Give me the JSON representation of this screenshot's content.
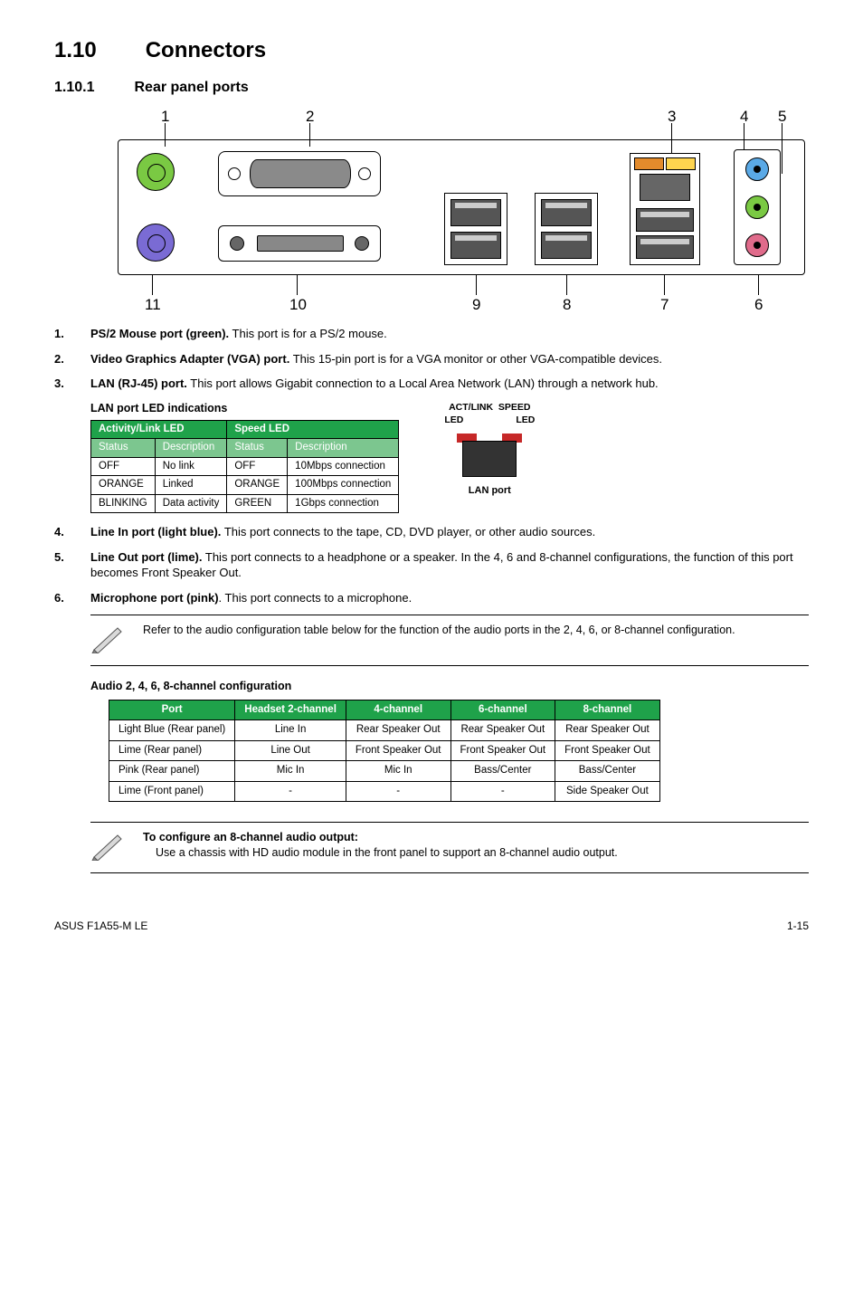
{
  "section": {
    "number": "1.10",
    "title": "Connectors"
  },
  "subsection": {
    "number": "1.10.1",
    "title": "Rear panel ports"
  },
  "diagram": {
    "top_labels": [
      "1",
      "2",
      "3",
      "4",
      "5"
    ],
    "bottom_labels": [
      "11",
      "10",
      "9",
      "8",
      "7",
      "6"
    ]
  },
  "items": [
    {
      "num": "1.",
      "name": "PS/2 Mouse port (green).",
      "desc": "This port is for a PS/2 mouse."
    },
    {
      "num": "2.",
      "name": "Video Graphics Adapter (VGA) port.",
      "desc": "This 15-pin port is for a VGA monitor or other VGA-compatible devices."
    },
    {
      "num": "3.",
      "name": "LAN (RJ-45) port.",
      "desc": "This port allows Gigabit connection to a Local Area Network (LAN) through a network hub."
    }
  ],
  "lan_table": {
    "caption": "LAN port LED indications",
    "header1_bg": "#1fa24a",
    "header2_bg": "#7cc68f",
    "group_headers": [
      "Activity/Link LED",
      "Speed LED"
    ],
    "sub_headers": [
      "Status",
      "Description",
      "Status",
      "Description"
    ],
    "rows": [
      [
        "OFF",
        "No link",
        "OFF",
        "10Mbps connection"
      ],
      [
        "ORANGE",
        "Linked",
        "ORANGE",
        "100Mbps connection"
      ],
      [
        "BLINKING",
        "Data activity",
        "GREEN",
        "1Gbps connection"
      ]
    ]
  },
  "lan_icon": {
    "top_label_line1": "ACT/LINK",
    "top_label_line2": "SPEED",
    "led_left": "LED",
    "led_right": "LED",
    "bottom_label": "LAN port"
  },
  "items2": [
    {
      "num": "4.",
      "name": "Line In port (light blue).",
      "desc": "This port connects to the tape, CD, DVD player, or other audio sources."
    },
    {
      "num": "5.",
      "name": "Line Out port (lime).",
      "desc": "This port connects to a headphone or a speaker. In the 4, 6 and 8-channel configurations, the function of this port becomes Front Speaker Out."
    },
    {
      "num": "6.",
      "name": "Microphone port (pink)",
      "desc": ". This port connects to a microphone."
    }
  ],
  "note1": "Refer to the audio configuration table below for the function of the audio ports in the 2, 4, 6, or 8-channel configuration.",
  "audio_table": {
    "caption": "Audio 2, 4, 6, 8-channel configuration",
    "header_bg": "#1fa24a",
    "headers": [
      "Port",
      "Headset 2-channel",
      "4-channel",
      "6-channel",
      "8-channel"
    ],
    "rows": [
      [
        "Light Blue (Rear panel)",
        "Line In",
        "Rear Speaker Out",
        "Rear Speaker Out",
        "Rear Speaker Out"
      ],
      [
        "Lime (Rear panel)",
        "Line Out",
        "Front Speaker Out",
        "Front Speaker Out",
        "Front Speaker Out"
      ],
      [
        "Pink (Rear panel)",
        "Mic In",
        "Mic In",
        "Bass/Center",
        "Bass/Center"
      ],
      [
        "Lime (Front panel)",
        "-",
        "-",
        "-",
        "Side Speaker Out"
      ]
    ]
  },
  "note2": {
    "title": "To configure an 8-channel audio output:",
    "body": "Use a chassis with HD audio module in the front panel to support an 8-channel audio output."
  },
  "footer": {
    "left": "ASUS F1A55-M LE",
    "right": "1-15"
  },
  "colors": {
    "green_header": "#1fa24a",
    "green_sub": "#7cc68f",
    "jack_blue": "#5aa9e6",
    "jack_lime": "#7ac943",
    "jack_pink": "#e06b8b",
    "led_orange": "#e38b2c",
    "led_red": "#c62828"
  }
}
